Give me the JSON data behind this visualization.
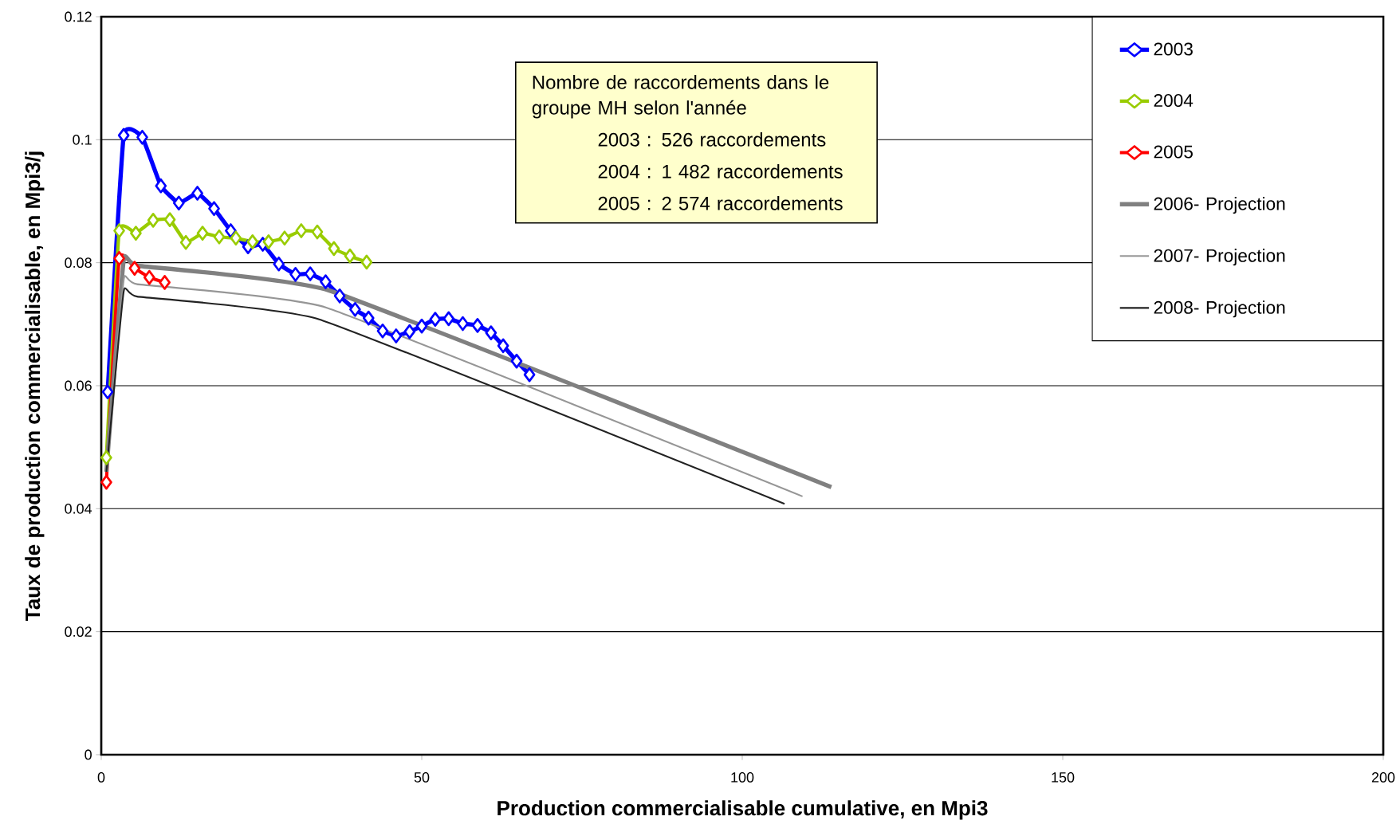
{
  "chart_data": {
    "type": "line",
    "xlabel": "Production commercialisable cumulative, en Mpi3",
    "ylabel": "Taux de production commercialisable, en Mpi3/j",
    "xlim": [
      0,
      200
    ],
    "xticks": [
      0,
      50,
      100,
      150,
      200
    ],
    "ylim": [
      0,
      0.12
    ],
    "yticks": [
      0,
      0.02,
      0.04,
      0.06,
      0.08,
      0.1,
      0.12
    ],
    "grid": "y",
    "legend": "top right",
    "line_style": "solid",
    "annotations": [
      "Nombre de raccordements dans le groupe MH selon l'année",
      "2003 :  526 raccordements",
      "2004 :  1 482 raccordements",
      "2005 :  2 574 raccordements"
    ],
    "series": [
      {
        "name": "2003",
        "color": "#0000ff",
        "marker": "diamond",
        "x": [
          1,
          3.5,
          6.4,
          9.3,
          12.1,
          15,
          17.6,
          20.2,
          22.9,
          25.2,
          27.7,
          30.3,
          32.6,
          35,
          37.2,
          39.6,
          41.7,
          43.9,
          46,
          48.1,
          50,
          52.1,
          54.2,
          56.4,
          58.7,
          60.8,
          62.7,
          64.8,
          66.8
        ],
        "values": [
          0.059,
          0.1007,
          0.1004,
          0.0925,
          0.0897,
          0.0913,
          0.0888,
          0.0852,
          0.0826,
          0.083,
          0.0798,
          0.0781,
          0.0782,
          0.0769,
          0.0746,
          0.0724,
          0.071,
          0.0689,
          0.0681,
          0.0688,
          0.0697,
          0.0708,
          0.0709,
          0.0701,
          0.0698,
          0.0686,
          0.0665,
          0.064,
          0.0618
        ]
      },
      {
        "name": "2004",
        "color": "#99cc00",
        "marker": "diamond",
        "x": [
          0.8,
          2.8,
          5.4,
          8.1,
          10.7,
          13.2,
          15.8,
          18.4,
          21,
          23.6,
          26.1,
          28.6,
          31.2,
          33.7,
          36.3,
          38.8,
          41.4
        ],
        "values": [
          0.0483,
          0.0852,
          0.0848,
          0.0869,
          0.087,
          0.0833,
          0.0848,
          0.0842,
          0.084,
          0.0834,
          0.0834,
          0.084,
          0.0852,
          0.085,
          0.0823,
          0.0811,
          0.0801
        ]
      },
      {
        "name": "2005",
        "color": "#ff0000",
        "marker": "diamond",
        "x": [
          0.8,
          2.8,
          5.2,
          7.5,
          9.9
        ],
        "values": [
          0.0443,
          0.0807,
          0.0791,
          0.0776,
          0.0768
        ]
      },
      {
        "name": "2006- Projection",
        "color": "#808080",
        "marker": "none",
        "x": [
          0.8,
          3.5,
          5.7,
          35.5,
          113.9
        ],
        "values": [
          0.046,
          0.0804,
          0.0795,
          0.0755,
          0.0435
        ]
      },
      {
        "name": "2007- Projection",
        "color": "#969696",
        "marker": "none",
        "x": [
          0.8,
          3.5,
          5.6,
          35.1,
          109.4
        ],
        "values": [
          0.046,
          0.0772,
          0.0765,
          0.0727,
          0.042
        ]
      },
      {
        "name": "2008- Projection",
        "color": "#222222",
        "marker": "none",
        "x": [
          0.8,
          3.5,
          5.6,
          34,
          106.6
        ],
        "values": [
          0.046,
          0.0753,
          0.0745,
          0.0708,
          0.0408
        ]
      }
    ]
  }
}
